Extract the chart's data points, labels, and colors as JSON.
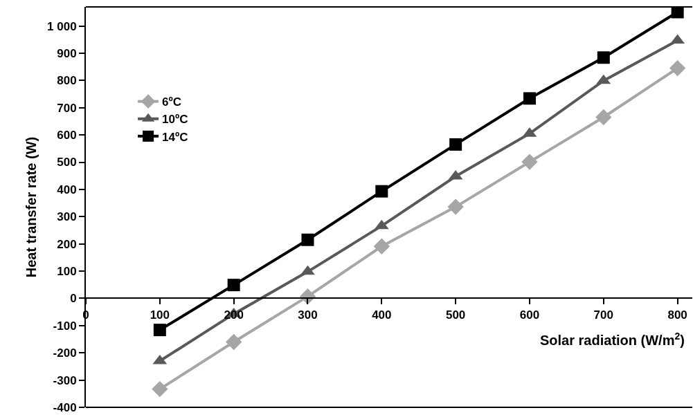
{
  "chart_data": {
    "type": "line",
    "xlabel": "Solar radiation (W/m$^{2}$)",
    "ylabel": "Heat transfer rate (W)",
    "x": [
      100,
      200,
      300,
      400,
      500,
      600,
      700,
      800
    ],
    "series": [
      {
        "name": "6ºC",
        "color": "#a6a6a6",
        "marker": "diamond",
        "values": [
          -333,
          -160,
          7,
          191,
          336,
          501,
          665,
          845
        ]
      },
      {
        "name": "10ºC",
        "color": "#595959",
        "marker": "triangle",
        "values": [
          -230,
          -57,
          98,
          266,
          448,
          605,
          799,
          947
        ]
      },
      {
        "name": "14ºC",
        "color": "#000000",
        "marker": "square",
        "values": [
          -116,
          49,
          215,
          393,
          565,
          734,
          884,
          1051
        ]
      }
    ],
    "xlim": [
      0,
      820
    ],
    "xticks": [
      0,
      100,
      200,
      300,
      400,
      500,
      600,
      700,
      800
    ],
    "ylim": [
      -400,
      1070
    ],
    "yticks": [
      -400,
      -300,
      -200,
      -100,
      0,
      100,
      200,
      300,
      400,
      500,
      600,
      700,
      800,
      900,
      {
        "value": 1000,
        "label": "1 000"
      }
    ],
    "legend": "left",
    "line_style": "solid"
  }
}
